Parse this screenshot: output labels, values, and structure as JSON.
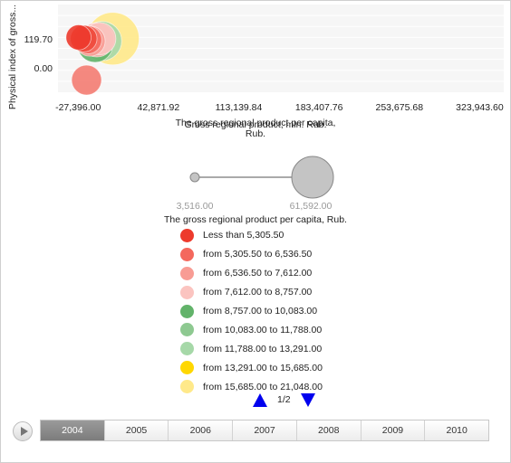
{
  "chart_data": {
    "type": "bubble",
    "ylabel": "Physical index of gross...",
    "xlabel": "Gross regional product, mln. Rub.",
    "x_ticks": [
      "-27,396.00",
      "42,871.92",
      "113,139.84",
      "183,407.76",
      "253,675.68",
      "323,943.60"
    ],
    "x_tick_values": [
      -27396,
      42871.92,
      113139.84,
      183407.76,
      253675.68,
      323943.6
    ],
    "y_ticks": [
      "119.70",
      "0.00"
    ],
    "y_tick_values": [
      119.7,
      0
    ],
    "xlim": [
      -45000,
      345000
    ],
    "ylim": [
      -100,
      260
    ],
    "points": [
      {
        "x": 3000,
        "y": 120,
        "size": 21048,
        "color": "#ffe98a"
      },
      {
        "x": -6500,
        "y": 110,
        "size": 11800,
        "color": "#a6d8a8"
      },
      {
        "x": -12500,
        "y": 95,
        "size": 9500,
        "color": "#62b36a"
      },
      {
        "x": -11000,
        "y": 115,
        "size": 9000,
        "color": "#f9b3ae"
      },
      {
        "x": -8500,
        "y": 120,
        "size": 8000,
        "color": "#fbc4c0"
      },
      {
        "x": -17000,
        "y": 110,
        "size": 7000,
        "color": "#f89c94"
      },
      {
        "x": -20000,
        "y": -50,
        "size": 6800,
        "color": "#f47c72"
      },
      {
        "x": -19000,
        "y": 115,
        "size": 6000,
        "color": "#f4685d"
      },
      {
        "x": -22500,
        "y": 120,
        "size": 5400,
        "color": "#ef4a3c"
      },
      {
        "x": -27000,
        "y": 125,
        "size": 4800,
        "color": "#ed3a2c"
      }
    ],
    "size_legend": {
      "title": "The gross regional product per capita, Rub.",
      "min_label": "3,516.00",
      "max_label": "61,592.00"
    },
    "color_legend": {
      "title": "The gross regional product per capita, Rub.",
      "items": [
        {
          "label": "Less than 5,305.50",
          "color": "#ed3a2c"
        },
        {
          "label": "from 5,305.50 to 6,536.50",
          "color": "#f4685d"
        },
        {
          "label": "from 6,536.50 to 7,612.00",
          "color": "#f89c94"
        },
        {
          "label": "from 7,612.00 to 8,757.00",
          "color": "#fbc4c0"
        },
        {
          "label": "from 8,757.00 to 10,083.00",
          "color": "#62b36a"
        },
        {
          "label": "from 10,083.00 to 11,788.00",
          "color": "#8ec991"
        },
        {
          "label": "from 11,788.00 to 13,291.00",
          "color": "#a6d8a8"
        },
        {
          "label": "from 13,291.00 to 15,685.00",
          "color": "#ffd700"
        },
        {
          "label": "from 15,685.00 to 21,048.00",
          "color": "#ffe98a"
        }
      ]
    },
    "grid": true
  },
  "pager": {
    "text": "1/2"
  },
  "timeline": {
    "years": [
      "2004",
      "2005",
      "2006",
      "2007",
      "2008",
      "2009",
      "2010"
    ],
    "selected": "2004"
  }
}
